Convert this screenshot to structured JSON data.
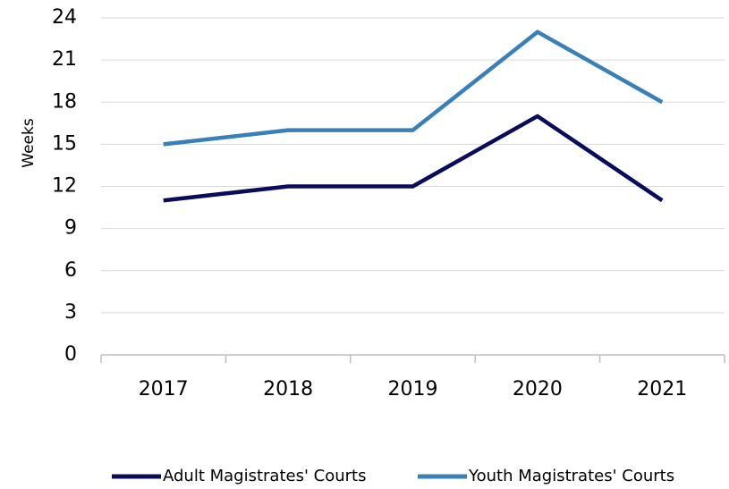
{
  "chart_data": {
    "type": "line",
    "y_label": "Weeks",
    "categories": [
      "2017",
      "2018",
      "2019",
      "2020",
      "2021"
    ],
    "series": [
      {
        "name": "Adult Magistrates' Courts",
        "color": "#0b0b5c",
        "values": [
          11,
          12,
          12,
          17,
          11
        ]
      },
      {
        "name": "Youth Magistrates' Courts",
        "color": "#3a80b8",
        "values": [
          15,
          16,
          16,
          23,
          18
        ]
      }
    ],
    "ylim": [
      0,
      24
    ],
    "yticks": [
      0,
      3,
      6,
      9,
      12,
      15,
      18,
      21,
      24
    ],
    "grid": true,
    "legend": "bottom"
  }
}
